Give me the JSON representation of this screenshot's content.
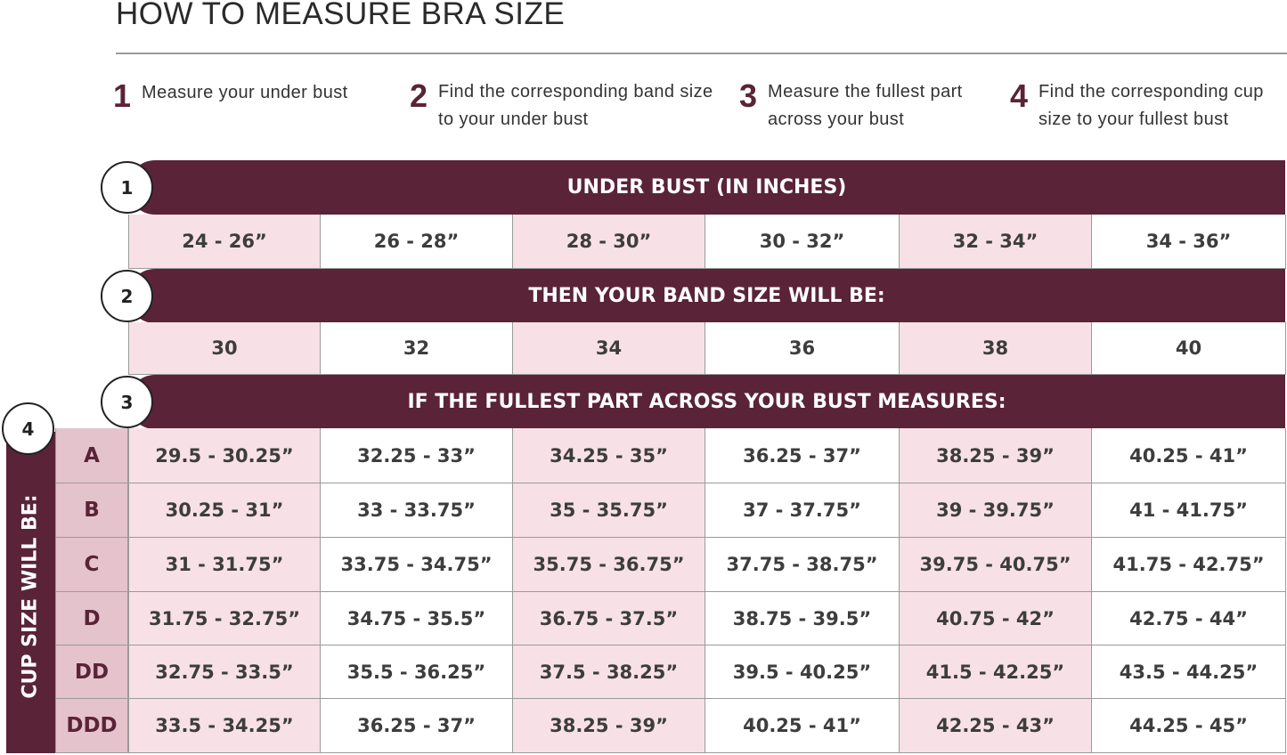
{
  "title": "HOW TO MEASURE BRA SIZE",
  "steps": [
    {
      "num": "1",
      "text": "Measure your under bust"
    },
    {
      "num": "2",
      "text": "Find the corresponding band size to your under bust"
    },
    {
      "num": "3",
      "text": "Measure the fullest part across your bust"
    },
    {
      "num": "4",
      "text": "Find the corresponding cup size to your fullest bust"
    }
  ],
  "colors": {
    "brand": "#5a2338",
    "pink": "#f7e1e6",
    "cup_pink": "#e5c3cc"
  },
  "table": {
    "under_bust_header": {
      "num": "1",
      "label": "UNDER BUST (IN INCHES)"
    },
    "under_bust": [
      "24 - 26”",
      "26 - 28”",
      "28 - 30”",
      "30 - 32”",
      "32 - 34”",
      "34 - 36”"
    ],
    "band_header": {
      "num": "2",
      "label": "THEN YOUR BAND SIZE WILL BE:"
    },
    "band_sizes": [
      "30",
      "32",
      "34",
      "36",
      "38",
      "40"
    ],
    "bust_header": {
      "num": "3",
      "label": "IF THE FULLEST PART ACROSS YOUR BUST MEASURES:"
    },
    "cup_header": {
      "num": "4",
      "label": "CUP SIZE WILL BE:"
    },
    "cup_rows": [
      {
        "cup": "A",
        "values": [
          "29.5 - 30.25”",
          "32.25  - 33”",
          "34.25 - 35”",
          "36.25 - 37”",
          "38.25 - 39”",
          "40.25 - 41”"
        ]
      },
      {
        "cup": "B",
        "values": [
          "30.25 - 31”",
          "33 - 33.75”",
          "35 - 35.75”",
          "37 - 37.75”",
          "39 - 39.75”",
          "41 - 41.75”"
        ]
      },
      {
        "cup": "C",
        "values": [
          "31 - 31.75”",
          "33.75  - 34.75”",
          "35.75 - 36.75”",
          "37.75 - 38.75”",
          "39.75 - 40.75”",
          "41.75 - 42.75”"
        ]
      },
      {
        "cup": "D",
        "values": [
          "31.75 - 32.75”",
          "34.75  - 35.5”",
          "36.75 - 37.5”",
          "38.75 - 39.5”",
          "40.75 - 42”",
          "42.75 - 44”"
        ]
      },
      {
        "cup": "DD",
        "values": [
          "32.75 - 33.5”",
          "35.5 - 36.25”",
          "37.5 - 38.25”",
          "39.5 - 40.25”",
          "41.5 - 42.25”",
          "43.5 - 44.25”"
        ]
      },
      {
        "cup": "DDD",
        "values": [
          "33.5 - 34.25”",
          "36.25 - 37”",
          "38.25 - 39”",
          "40.25 - 41”",
          "42.25 - 43”",
          "44.25 - 45”"
        ]
      }
    ]
  }
}
